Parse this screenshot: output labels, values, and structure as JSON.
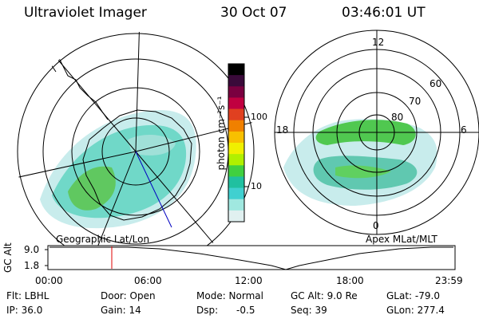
{
  "header": {
    "instrument": "Ultraviolet Imager",
    "date": "30 Oct 07",
    "time": "03:46:01 UT"
  },
  "left_panel": {
    "caption": "Geographic Lat/Lon"
  },
  "right_panel": {
    "caption": "Apex MLat/MLT",
    "mlt_labels": [
      "12",
      "18",
      "6",
      "0"
    ],
    "mlat_labels": [
      "60",
      "70",
      "80"
    ]
  },
  "colorbar": {
    "unit_label": "photon cm⁻²s⁻¹",
    "tick_labels": [
      "100",
      "10"
    ],
    "colors": [
      "#000000",
      "#3a0a3a",
      "#7a0040",
      "#c00040",
      "#e04020",
      "#f08000",
      "#f8c000",
      "#f0f000",
      "#b0f000",
      "#40d040",
      "#20c0a0",
      "#40d0d0",
      "#a0e8e0",
      "#e0f0f0"
    ]
  },
  "altitude_plot": {
    "y_axis_label": "GC Alt",
    "y_ticks": [
      "9.0",
      "1.8"
    ],
    "x_ticks": [
      "00:00",
      "06:00",
      "12:00",
      "18:00",
      "23:59"
    ],
    "marker_color": "#e00000"
  },
  "info": {
    "flt": "Flt: LBHL",
    "ip": "IP: 36.0",
    "door": "Door: Open",
    "gain": "Gain: 14",
    "mode": "Mode: Normal",
    "dsp": "Dsp:      -0.5",
    "gc_alt": "GC Alt: 9.0 Re",
    "seq": "Seq: 39",
    "glat": "GLat: -79.0",
    "glon": "GLon: 277.4"
  }
}
